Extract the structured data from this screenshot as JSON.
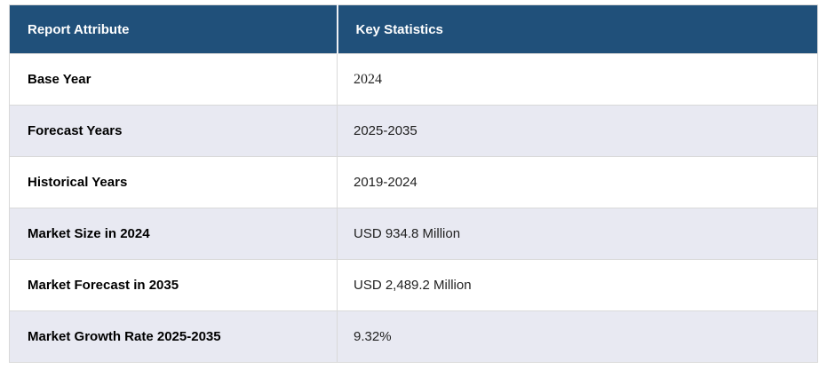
{
  "table": {
    "columns": {
      "attribute": "Report Attribute",
      "statistics": "Key Statistics"
    },
    "rows": [
      {
        "attribute": "Base Year",
        "value": "2024"
      },
      {
        "attribute": "Forecast Years",
        "value": "2025-2035"
      },
      {
        "attribute": "Historical Years",
        "value": "2019-2024"
      },
      {
        "attribute": "Market Size in 2024",
        "value": "USD 934.8 Million"
      },
      {
        "attribute": "Market Forecast in 2035",
        "value": "USD 2,489.2 Million"
      },
      {
        "attribute": "Market Growth Rate 2025-2035",
        "value": "9.32%"
      }
    ]
  },
  "colors": {
    "header_bg": "#20507a",
    "header_text": "#ffffff",
    "stripe_bg": "#e8e9f2",
    "row_bg": "#ffffff",
    "border": "#d9d9d9",
    "text": "#1f1f1f"
  }
}
